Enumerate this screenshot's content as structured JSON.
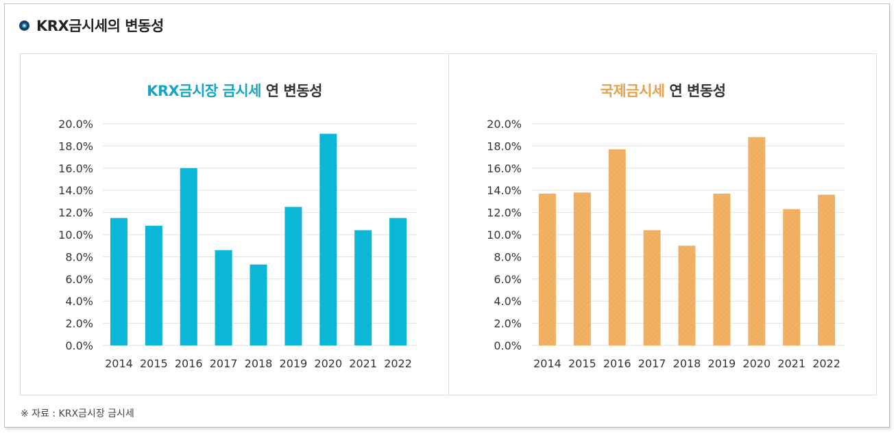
{
  "header": {
    "title": "KRX금시세의 변동성"
  },
  "charts": [
    {
      "title_highlight": "KRX금시장 금시세",
      "title_rest": " 연 변동성",
      "color": "#0cb6d6",
      "highlight_color": "#11a5c7"
    },
    {
      "title_highlight": "국제금시세",
      "title_rest": " 연 변동성",
      "color": "#f2b265",
      "highlight_color": "#e8a04a"
    }
  ],
  "chart_data": [
    {
      "type": "bar",
      "title": "KRX금시장 금시세 연 변동성",
      "categories": [
        "2014",
        "2015",
        "2016",
        "2017",
        "2018",
        "2019",
        "2020",
        "2021",
        "2022"
      ],
      "values": [
        11.5,
        10.8,
        16.0,
        8.6,
        7.3,
        12.5,
        19.1,
        10.4,
        11.5
      ],
      "ylim": [
        0,
        20
      ],
      "yticks": [
        "0.0%",
        "2.0%",
        "4.0%",
        "6.0%",
        "8.0%",
        "10.0%",
        "12.0%",
        "14.0%",
        "16.0%",
        "18.0%",
        "20.0%"
      ],
      "grid": true
    },
    {
      "type": "bar",
      "title": "국제금시세 연 변동성",
      "categories": [
        "2014",
        "2015",
        "2016",
        "2017",
        "2018",
        "2019",
        "2020",
        "2021",
        "2022"
      ],
      "values": [
        13.7,
        13.8,
        17.7,
        10.4,
        9.0,
        13.7,
        18.8,
        12.3,
        13.6
      ],
      "ylim": [
        0,
        20
      ],
      "yticks": [
        "0.0%",
        "2.0%",
        "4.0%",
        "6.0%",
        "8.0%",
        "10.0%",
        "12.0%",
        "14.0%",
        "16.0%",
        "18.0%",
        "20.0%"
      ],
      "grid": true
    }
  ],
  "footer": {
    "source": "※ 자료 : KRX금시장 금시세"
  }
}
